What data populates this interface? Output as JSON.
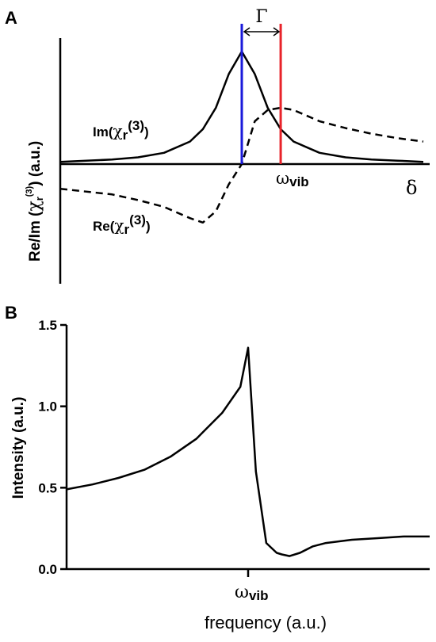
{
  "chart_data": [
    {
      "panel": "A",
      "type": "line",
      "ylabel": "Re/Im (χ_r^(3)) (a.u.)",
      "xlabel": "δ",
      "gamma_label": "Γ",
      "omega_label": "ω",
      "omega_sub": "vib",
      "series": [
        {
          "name": "Im(χr(3))",
          "style": "solid",
          "color": "#000000",
          "x": [
            -7,
            -5,
            -4,
            -3,
            -2,
            -1.5,
            -1,
            -0.5,
            0,
            0.5,
            1,
            1.5,
            2,
            3,
            4,
            5,
            6,
            7
          ],
          "y": [
            0.02,
            0.04,
            0.06,
            0.1,
            0.2,
            0.31,
            0.5,
            0.8,
            1.0,
            0.8,
            0.5,
            0.31,
            0.2,
            0.1,
            0.06,
            0.04,
            0.03,
            0.02
          ]
        },
        {
          "name": "Re(χr(3))",
          "style": "dashed",
          "color": "#000000",
          "x": [
            -7,
            -5,
            -4,
            -3,
            -2,
            -1.5,
            -1,
            -0.5,
            0,
            0.5,
            1,
            1.5,
            2,
            3,
            4,
            5,
            6,
            7
          ],
          "y": [
            -0.22,
            -0.27,
            -0.32,
            -0.38,
            -0.48,
            -0.52,
            -0.42,
            -0.18,
            0.0,
            0.38,
            0.48,
            0.5,
            0.48,
            0.38,
            0.32,
            0.27,
            0.23,
            0.2
          ]
        }
      ],
      "markers": [
        {
          "name": "resonance-line",
          "x": 0,
          "color": "#1a1adb"
        },
        {
          "name": "vibrational-line",
          "x": 1.5,
          "color": "#e8232a"
        }
      ],
      "labels": {
        "im_prefix": "Im(",
        "re_prefix": "Re(",
        "chi": "χ",
        "sub": "r",
        "sup": "(3)",
        "suffix": ")"
      },
      "xlim": [
        -7,
        7
      ],
      "ylim": [
        -1.05,
        1.05
      ]
    },
    {
      "panel": "B",
      "type": "line",
      "ylabel": "Intensity (a.u.)",
      "xlabel": "frequency (a.u.)",
      "xtick": {
        "omega": "ω",
        "sub": "vib",
        "x": 0
      },
      "yticks": [
        "0.0",
        "0.5",
        "1.0",
        "1.5"
      ],
      "ylim": [
        0,
        1.5
      ],
      "xlim": [
        -7,
        7
      ],
      "series": [
        {
          "name": "",
          "color": "#000000",
          "x": [
            -7,
            -6,
            -5,
            -4,
            -3,
            -2,
            -1,
            -0.3,
            0,
            0.3,
            0.7,
            1.1,
            1.3,
            1.6,
            2,
            2.5,
            3,
            4,
            5,
            6,
            7
          ],
          "y": [
            0.49,
            0.52,
            0.56,
            0.61,
            0.69,
            0.8,
            0.96,
            1.12,
            1.36,
            0.6,
            0.16,
            0.1,
            0.09,
            0.08,
            0.1,
            0.14,
            0.16,
            0.18,
            0.19,
            0.2,
            0.2
          ]
        }
      ]
    }
  ],
  "panel_labels": {
    "a": "A",
    "b": "B"
  }
}
